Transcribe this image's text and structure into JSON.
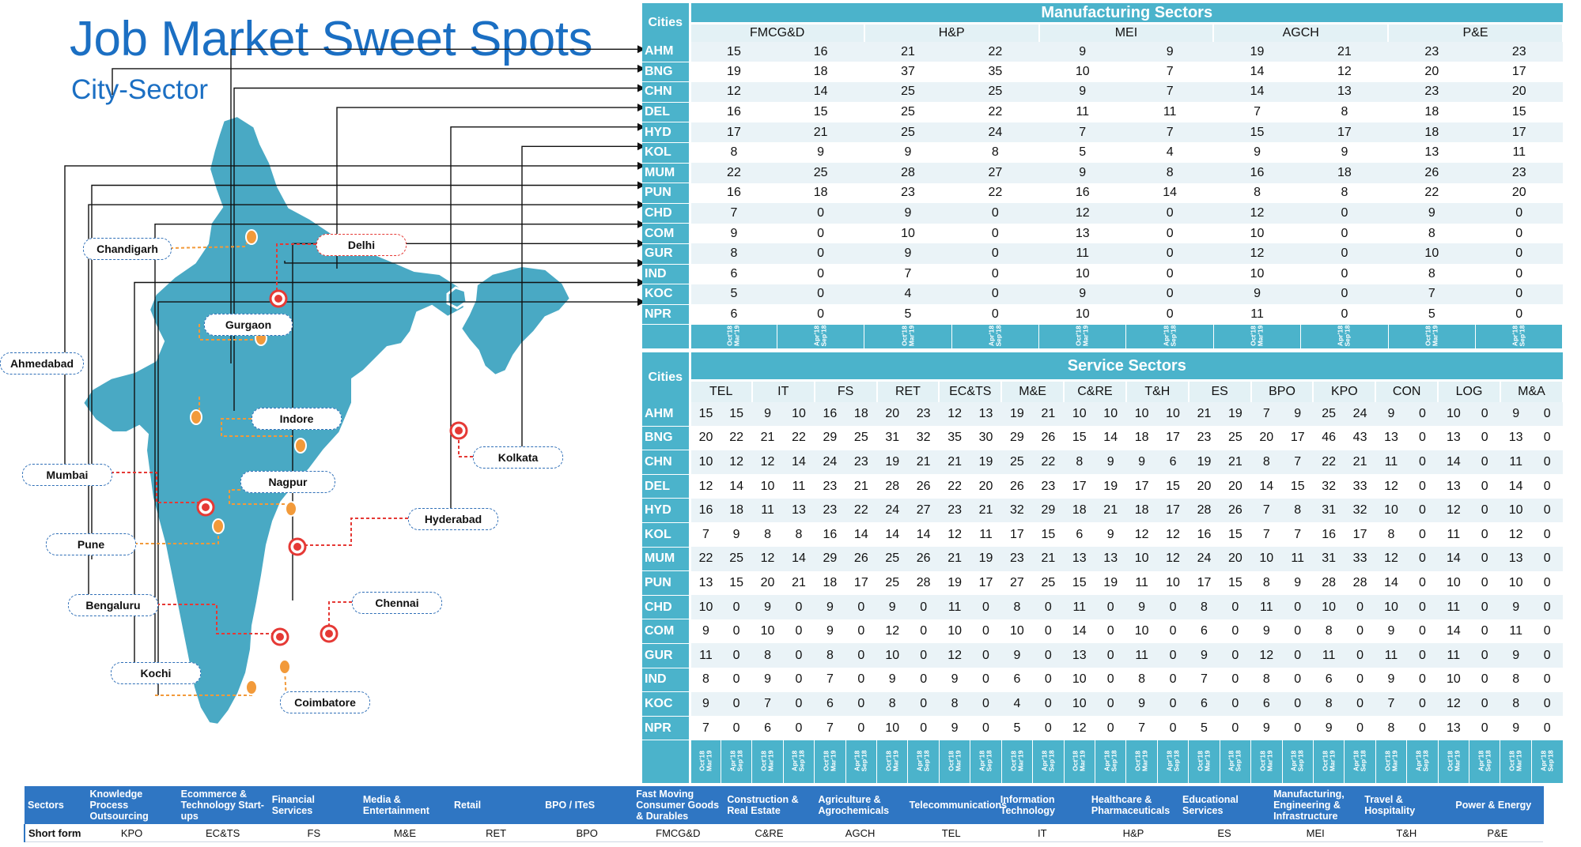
{
  "title": "Job Market Sweet Spots",
  "subtitle": "City-Sector",
  "chart_data": [
    {
      "type": "table",
      "title": "Manufacturing Sectors",
      "row_header": "Cities",
      "sectors": [
        "FMCG&D",
        "H&P",
        "MEI",
        "AGCH",
        "P&E"
      ],
      "periods": [
        "Oct'18 - Mar'19",
        "Apr'18 - Sep'18"
      ],
      "cities": [
        "AHM",
        "BNG",
        "CHN",
        "DEL",
        "HYD",
        "KOL",
        "MUM",
        "PUN",
        "CHD",
        "COM",
        "GUR",
        "IND",
        "KOC",
        "NPR"
      ],
      "rows": [
        [
          15,
          16,
          21,
          22,
          9,
          9,
          19,
          21,
          23,
          23
        ],
        [
          19,
          18,
          37,
          35,
          10,
          7,
          14,
          12,
          20,
          17
        ],
        [
          12,
          14,
          25,
          25,
          9,
          7,
          14,
          13,
          23,
          20
        ],
        [
          16,
          15,
          25,
          22,
          11,
          11,
          7,
          8,
          18,
          15
        ],
        [
          17,
          21,
          25,
          24,
          7,
          7,
          15,
          17,
          18,
          17
        ],
        [
          8,
          9,
          9,
          8,
          5,
          4,
          9,
          9,
          13,
          11
        ],
        [
          22,
          25,
          28,
          27,
          9,
          8,
          16,
          18,
          26,
          23
        ],
        [
          16,
          18,
          23,
          22,
          16,
          14,
          8,
          8,
          22,
          20
        ],
        [
          7,
          0,
          9,
          0,
          12,
          0,
          12,
          0,
          9,
          0
        ],
        [
          9,
          0,
          10,
          0,
          13,
          0,
          10,
          0,
          8,
          0
        ],
        [
          8,
          0,
          9,
          0,
          11,
          0,
          12,
          0,
          10,
          0
        ],
        [
          6,
          0,
          7,
          0,
          10,
          0,
          10,
          0,
          8,
          0
        ],
        [
          5,
          0,
          4,
          0,
          9,
          0,
          9,
          0,
          7,
          0
        ],
        [
          6,
          0,
          5,
          0,
          10,
          0,
          11,
          0,
          5,
          0
        ]
      ]
    },
    {
      "type": "table",
      "title": "Service Sectors",
      "row_header": "Cities",
      "sectors": [
        "TEL",
        "IT",
        "FS",
        "RET",
        "EC&TS",
        "M&E",
        "C&RE",
        "T&H",
        "ES",
        "BPO",
        "KPO",
        "CON",
        "LOG",
        "M&A"
      ],
      "periods": [
        "Oct'18 - Mar'19",
        "Apr'18 - Sep'18"
      ],
      "cities": [
        "AHM",
        "BNG",
        "CHN",
        "DEL",
        "HYD",
        "KOL",
        "MUM",
        "PUN",
        "CHD",
        "COM",
        "GUR",
        "IND",
        "KOC",
        "NPR"
      ],
      "rows": [
        [
          15,
          15,
          9,
          10,
          16,
          18,
          20,
          23,
          12,
          13,
          19,
          21,
          10,
          10,
          10,
          10,
          21,
          19,
          7,
          9,
          25,
          24,
          9,
          0,
          10,
          0,
          9,
          0
        ],
        [
          20,
          22,
          21,
          22,
          29,
          25,
          31,
          32,
          35,
          30,
          29,
          26,
          15,
          14,
          18,
          17,
          23,
          25,
          20,
          17,
          46,
          43,
          13,
          0,
          13,
          0,
          13,
          0
        ],
        [
          10,
          12,
          12,
          14,
          24,
          23,
          19,
          21,
          21,
          19,
          25,
          22,
          8,
          9,
          9,
          6,
          19,
          21,
          8,
          7,
          22,
          21,
          11,
          0,
          14,
          0,
          11,
          0
        ],
        [
          12,
          14,
          10,
          11,
          23,
          21,
          28,
          26,
          22,
          20,
          26,
          23,
          17,
          19,
          17,
          15,
          20,
          20,
          14,
          15,
          32,
          33,
          12,
          0,
          13,
          0,
          14,
          0
        ],
        [
          16,
          18,
          11,
          13,
          23,
          22,
          24,
          27,
          23,
          21,
          32,
          29,
          18,
          21,
          18,
          17,
          28,
          26,
          7,
          8,
          31,
          32,
          10,
          0,
          12,
          0,
          10,
          0
        ],
        [
          7,
          9,
          8,
          8,
          16,
          14,
          14,
          14,
          12,
          11,
          17,
          15,
          6,
          9,
          12,
          12,
          16,
          15,
          7,
          7,
          16,
          17,
          8,
          0,
          11,
          0,
          12,
          0
        ],
        [
          22,
          25,
          12,
          14,
          29,
          26,
          25,
          26,
          21,
          19,
          23,
          21,
          13,
          13,
          10,
          12,
          24,
          20,
          10,
          11,
          31,
          33,
          12,
          0,
          14,
          0,
          13,
          0
        ],
        [
          13,
          15,
          20,
          21,
          18,
          17,
          25,
          28,
          19,
          17,
          27,
          25,
          15,
          19,
          11,
          10,
          17,
          15,
          8,
          9,
          28,
          28,
          14,
          0,
          10,
          0,
          10,
          0
        ],
        [
          10,
          0,
          9,
          0,
          9,
          0,
          9,
          0,
          11,
          0,
          8,
          0,
          11,
          0,
          9,
          0,
          8,
          0,
          11,
          0,
          10,
          0,
          10,
          0,
          11,
          0,
          9,
          0
        ],
        [
          9,
          0,
          10,
          0,
          9,
          0,
          12,
          0,
          10,
          0,
          10,
          0,
          14,
          0,
          10,
          0,
          6,
          0,
          9,
          0,
          8,
          0,
          9,
          0,
          14,
          0,
          11,
          0
        ],
        [
          11,
          0,
          8,
          0,
          8,
          0,
          10,
          0,
          12,
          0,
          9,
          0,
          13,
          0,
          11,
          0,
          9,
          0,
          12,
          0,
          11,
          0,
          11,
          0,
          11,
          0,
          9,
          0
        ],
        [
          8,
          0,
          9,
          0,
          7,
          0,
          9,
          0,
          9,
          0,
          6,
          0,
          10,
          0,
          8,
          0,
          7,
          0,
          8,
          0,
          6,
          0,
          9,
          0,
          10,
          0,
          8,
          0
        ],
        [
          9,
          0,
          7,
          0,
          6,
          0,
          8,
          0,
          8,
          0,
          4,
          0,
          10,
          0,
          9,
          0,
          6,
          0,
          6,
          0,
          8,
          0,
          7,
          0,
          12,
          0,
          8,
          0
        ],
        [
          7,
          0,
          6,
          0,
          7,
          0,
          10,
          0,
          9,
          0,
          5,
          0,
          12,
          0,
          7,
          0,
          5,
          0,
          9,
          0,
          9,
          0,
          8,
          0,
          13,
          0,
          9,
          0
        ]
      ]
    }
  ],
  "map": {
    "labels": [
      {
        "name": "Chandigarh",
        "style": "blue"
      },
      {
        "name": "Delhi",
        "style": "red"
      },
      {
        "name": "Ahmedabad",
        "style": "blue"
      },
      {
        "name": "Gurgaon",
        "style": "blue"
      },
      {
        "name": "Indore",
        "style": "blue"
      },
      {
        "name": "Kolkata",
        "style": "blue"
      },
      {
        "name": "Mumbai",
        "style": "blue"
      },
      {
        "name": "Nagpur",
        "style": "blue"
      },
      {
        "name": "Hyderabad",
        "style": "blue"
      },
      {
        "name": "Pune",
        "style": "blue"
      },
      {
        "name": "Bengaluru",
        "style": "blue"
      },
      {
        "name": "Chennai",
        "style": "blue"
      },
      {
        "name": "Kochi",
        "style": "blue"
      },
      {
        "name": "Coimbatore",
        "style": "blue"
      }
    ]
  },
  "legend": {
    "row1_header": "Sectors",
    "row2_header": "Short form",
    "items": [
      {
        "full": "Knowledge Process Outsourcing",
        "short": "KPO"
      },
      {
        "full": "Ecommerce & Technology Start-ups",
        "short": "EC&TS"
      },
      {
        "full": "Financial Services",
        "short": "FS"
      },
      {
        "full": "Media & Entertainment",
        "short": "M&E"
      },
      {
        "full": "Retail",
        "short": "RET"
      },
      {
        "full": "BPO / ITeS",
        "short": "BPO"
      },
      {
        "full": "Fast Moving Consumer Goods & Durables",
        "short": "FMCG&D"
      },
      {
        "full": "Construction & Real Estate",
        "short": "C&RE"
      },
      {
        "full": "Agriculture & Agrochemicals",
        "short": "AGCH"
      },
      {
        "full": "Telecommunications",
        "short": "TEL"
      },
      {
        "full": "Information Technology",
        "short": "IT"
      },
      {
        "full": "Healthcare & Pharmaceuticals",
        "short": "H&P"
      },
      {
        "full": "Educational Services",
        "short": "ES"
      },
      {
        "full": "Manufacturing, Engineering & Infrastructure",
        "short": "MEI"
      },
      {
        "full": "Travel & Hospitality",
        "short": "T&H"
      },
      {
        "full": "Power & Energy",
        "short": "P&E"
      }
    ]
  },
  "colors": {
    "accent": "#4bb3cb",
    "title": "#1b6fc3",
    "map": "#49a9c4",
    "legend": "#2f76c3",
    "red": "#e53935",
    "orange": "#f29a3a"
  }
}
